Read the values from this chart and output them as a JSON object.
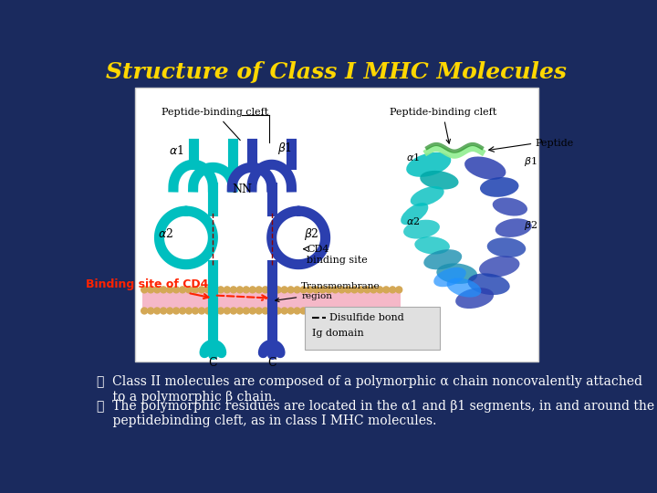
{
  "title": "Structure of Class I MHC Molecules",
  "title_color": "#FFD700",
  "title_fontsize": 18,
  "background_color": "#1a2a5e",
  "bullet1": "✓  Class II molecules are composed of a polymorphic α chain noncovalently attached\n    to a polymorphic β chain.",
  "bullet2": "✓  The polymorphic residues are located in the α1 and β1 segments, in and around the\n    peptidebinding cleft, as in class I MHC molecules.",
  "bullet_color": "#ffffff",
  "bullet_fontsize": 10,
  "binding_site_label": "Binding site of CD4",
  "binding_site_color": "#ff2200",
  "cyan_color": "#00BFBF",
  "blue_color": "#2B3FAF",
  "membrane_pink": "#F5B8C8",
  "membrane_gold": "#D4A855",
  "dark_red": "#8B0000"
}
